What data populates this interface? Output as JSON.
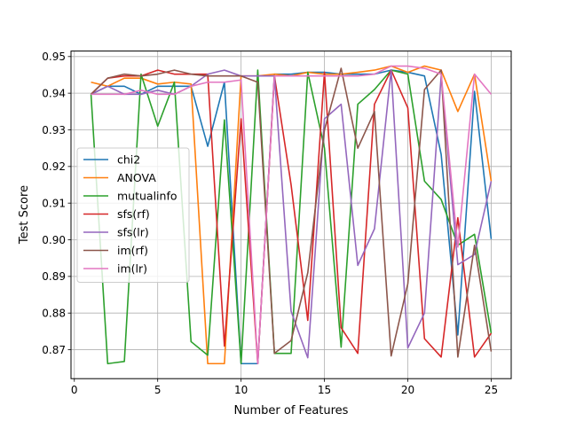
{
  "chart_data": {
    "type": "line",
    "title": "",
    "xlabel": "Number of Features",
    "ylabel": "Test Score",
    "xlim": [
      -0.2,
      26.2
    ],
    "ylim": [
      0.8621,
      0.9515
    ],
    "xticks": [
      0,
      5,
      10,
      15,
      20,
      25
    ],
    "yticks": [
      0.87,
      0.88,
      0.89,
      0.9,
      0.91,
      0.92,
      0.93,
      0.94,
      0.95
    ],
    "grid": true,
    "legend_position": "center-left",
    "x": [
      1,
      2,
      3,
      4,
      5,
      6,
      7,
      8,
      9,
      10,
      11,
      12,
      13,
      14,
      15,
      16,
      17,
      18,
      19,
      20,
      21,
      22,
      23,
      24,
      25
    ],
    "series": [
      {
        "name": "chi2",
        "color": "#1f77b4",
        "values": [
          0.9397,
          0.9419,
          0.9419,
          0.9397,
          0.9419,
          0.9419,
          0.9419,
          0.9255,
          0.943,
          0.8662,
          0.8662,
          0.9452,
          0.9452,
          0.9457,
          0.9457,
          0.9452,
          0.9452,
          0.9452,
          0.9463,
          0.9457,
          0.9447,
          0.9233,
          0.874,
          0.9405,
          0.9002
        ]
      },
      {
        "name": "ANOVA",
        "color": "#ff7f0e",
        "values": [
          0.943,
          0.9419,
          0.9441,
          0.9441,
          0.9425,
          0.943,
          0.9425,
          0.8662,
          0.8662,
          0.9447,
          0.9447,
          0.9452,
          0.9447,
          0.9457,
          0.9452,
          0.9452,
          0.9457,
          0.9463,
          0.9474,
          0.9457,
          0.9474,
          0.9463,
          0.935,
          0.9452,
          0.916
        ]
      },
      {
        "name": "mutualinfo",
        "color": "#2ca02c",
        "values": [
          0.9397,
          0.8662,
          0.8668,
          0.9452,
          0.931,
          0.943,
          0.8722,
          0.8685,
          0.9327,
          0.8662,
          0.9463,
          0.869,
          0.869,
          0.9457,
          0.925,
          0.8707,
          0.937,
          0.941,
          0.9463,
          0.9452,
          0.916,
          0.911,
          0.8985,
          0.9015,
          0.8745
        ]
      },
      {
        "name": "sfs(rf)",
        "color": "#d62728",
        "values": [
          0.9397,
          0.9441,
          0.9447,
          0.9447,
          0.9463,
          0.9452,
          0.9452,
          0.9452,
          0.871,
          0.933,
          0.8662,
          0.9447,
          0.915,
          0.878,
          0.9457,
          0.876,
          0.869,
          0.937,
          0.9463,
          0.936,
          0.873,
          0.868,
          0.906,
          0.868,
          0.8745
        ]
      },
      {
        "name": "sfs(lr)",
        "color": "#9467bd",
        "values": [
          0.9397,
          0.9419,
          0.9397,
          0.9397,
          0.9408,
          0.9397,
          0.9419,
          0.9452,
          0.9463,
          0.9447,
          0.9447,
          0.9447,
          0.8805,
          0.8678,
          0.933,
          0.937,
          0.893,
          0.903,
          0.9463,
          0.8705,
          0.88,
          0.9447,
          0.8932,
          0.896,
          0.916
        ]
      },
      {
        "name": "im(rf)",
        "color": "#8c564b",
        "values": [
          0.9397,
          0.9441,
          0.9452,
          0.9447,
          0.9452,
          0.9463,
          0.9452,
          0.9447,
          0.9447,
          0.9447,
          0.943,
          0.869,
          0.8725,
          0.891,
          0.93,
          0.9468,
          0.925,
          0.935,
          0.8683,
          0.888,
          0.941,
          0.9463,
          0.868,
          0.8985,
          0.8695
        ]
      },
      {
        "name": "im(lr)",
        "color": "#e377c2",
        "values": [
          0.9397,
          0.9397,
          0.9397,
          0.9408,
          0.9397,
          0.9397,
          0.9419,
          0.943,
          0.943,
          0.9436,
          0.8662,
          0.9447,
          0.9447,
          0.9447,
          0.9447,
          0.9447,
          0.9447,
          0.9452,
          0.9474,
          0.9474,
          0.9468,
          0.9452,
          0.898,
          0.9452,
          0.9397
        ]
      }
    ]
  }
}
